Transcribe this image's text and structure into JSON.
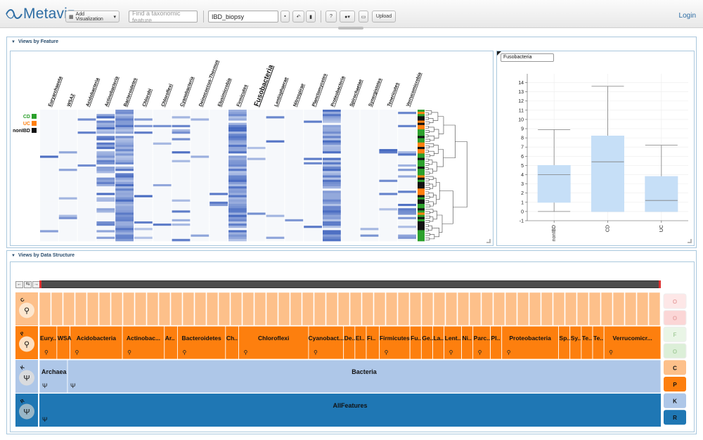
{
  "app": {
    "logo_text": "Metaviz",
    "login_label": "Login"
  },
  "toolbar": {
    "add_visualization_label": "Add Visualization",
    "search_placeholder": "Find a taxonomic feature",
    "dataset_value": "IBD_biopsy",
    "help_label": "?",
    "upload_label": "Upload"
  },
  "views_by_feature": {
    "title": "Views by Feature",
    "heatmap": {
      "columns": [
        "Euryarchaeota",
        "WSA2",
        "Acidobacteria",
        "Actinobacteria",
        "Bacteroidetes",
        "Chlorobi",
        "Chloroflexi",
        "Cyanobacteria",
        "Deinococcus-Thermus",
        "Elusimicrobia",
        "Firmicutes",
        "Fusobacteria",
        "Lentisphaerae",
        "Nitrospirae",
        "Planctomycetes",
        "Proteobacteria",
        "Spirochaetae",
        "Synergistetes",
        "Tenericutes",
        "Verrucomicrobia"
      ],
      "highlighted_column": "Fusobacteria",
      "legend": [
        {
          "label": "CD",
          "color": "#2ca02c"
        },
        {
          "label": "UC",
          "color": "#ff7f0e"
        },
        {
          "label": "nonIBD",
          "color": "#111111"
        }
      ]
    },
    "boxplot": {
      "feature_label": "Fusobacteria",
      "chart_data": {
        "type": "box",
        "title": "",
        "xlabel": "",
        "ylabel": "",
        "categories": [
          "nonIBD",
          "CD",
          "UC"
        ],
        "boxes": [
          {
            "name": "nonIBD",
            "min": 0,
            "q1": 1.0,
            "median": 4.0,
            "q3": 5.0,
            "max": 8.9
          },
          {
            "name": "CD",
            "min": 0,
            "q1": 0.0,
            "median": 5.4,
            "q3": 8.2,
            "max": 13.6
          },
          {
            "name": "UC",
            "min": 0,
            "q1": 0.0,
            "median": 1.2,
            "q3": 3.8,
            "max": 7.2
          }
        ],
        "yticks": [
          "-1",
          "0",
          "1",
          "2",
          "3",
          "4",
          "5",
          "6",
          "7",
          "8",
          "9",
          "10",
          "11",
          "12",
          "13",
          "14"
        ],
        "ylim": [
          -1,
          14.5
        ],
        "colors": {
          "box": "#c6dff7",
          "line": "#7f7f7f"
        }
      }
    }
  },
  "views_by_data_structure": {
    "title": "Views by Data Structure",
    "levels": [
      {
        "key": "C",
        "label": "C"
      },
      {
        "key": "P",
        "label": "P"
      },
      {
        "key": "K",
        "label": "K"
      },
      {
        "key": "R",
        "label": "R"
      }
    ],
    "phylum_nodes": [
      "Eury..",
      "WSA",
      "Acidobacteria",
      "Actinobac...",
      "Ar..",
      "Bacteroidetes",
      "Ch..",
      "Chloroflexi",
      "Cyanobact...",
      "De..",
      "El..",
      "Fi..",
      "Firmicutes",
      "Fu..",
      "Ge..",
      "La..",
      "Lent..",
      "Ni..",
      "Parc..",
      "Pl..",
      "Proteobacteria",
      "Sp..",
      "Sy..",
      "Te..",
      "Te..",
      "Verrucomicr..."
    ],
    "kingdom_nodes": [
      "Archaea",
      "Bacteria"
    ],
    "root_node": "AllFeatures",
    "right_controls": [
      "O",
      "O",
      "F",
      "O",
      "C",
      "P",
      "K",
      "R"
    ],
    "colors": {
      "class_row": "#fdc08a",
      "phylum_row": "#fd7f0e",
      "kingdom_row": "#aec7e8",
      "root_row": "#1f77b4"
    }
  }
}
